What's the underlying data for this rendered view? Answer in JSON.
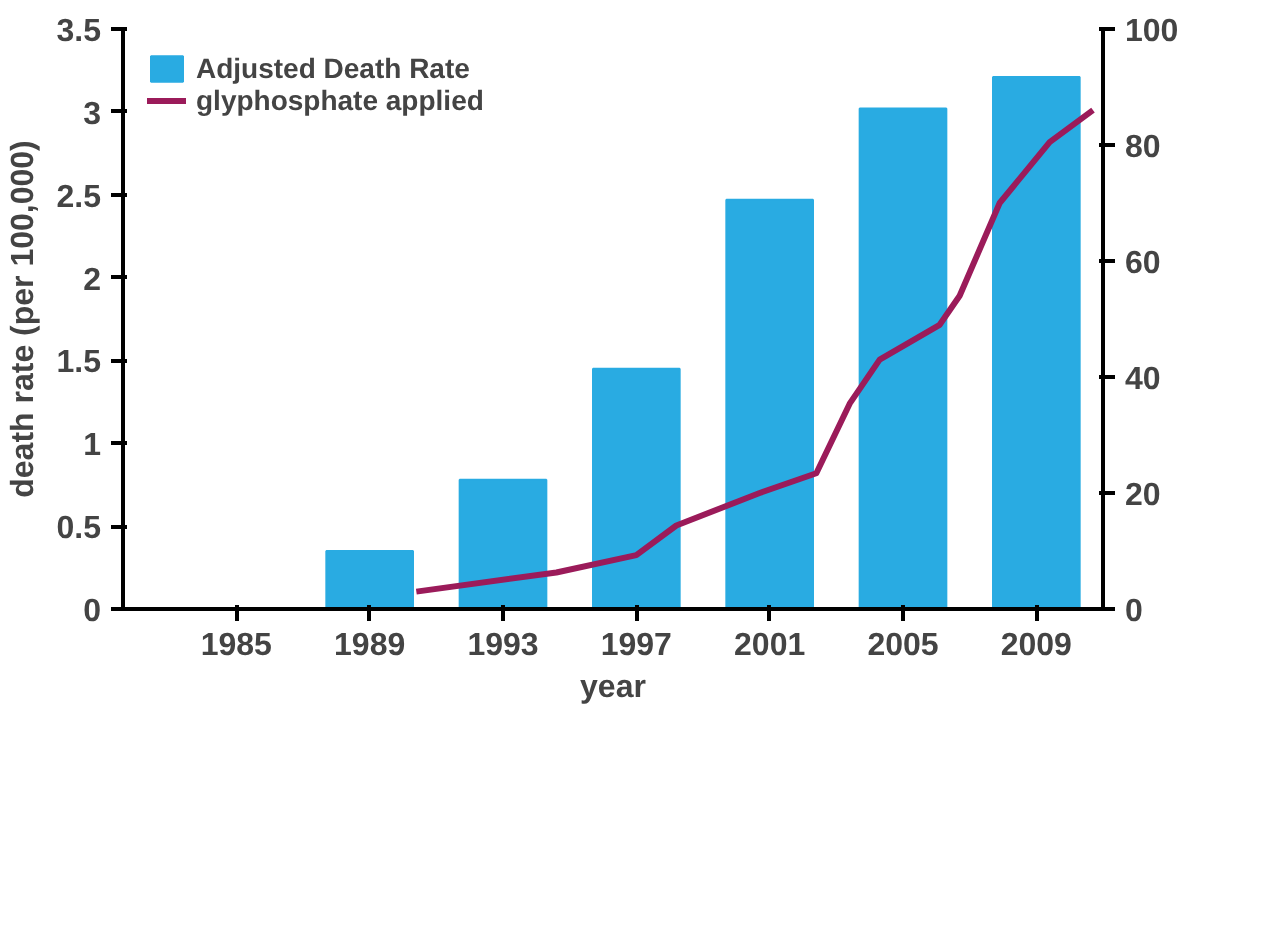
{
  "chart_data": {
    "type": "bar",
    "xlabel": "year",
    "ylabel": "death rate (per 100,000)",
    "x": [
      1989,
      1993,
      1997,
      2001,
      2005,
      2009
    ],
    "xlim": [
      1981.6,
      2011
    ],
    "xticks": [
      1985,
      1989,
      1993,
      1997,
      2001,
      2005,
      2009
    ],
    "ylim": [
      0,
      3.5
    ],
    "yticks": [
      0,
      0.5,
      1,
      1.5,
      2,
      2.5,
      3,
      3.5
    ],
    "y2lim": [
      0,
      100
    ],
    "y2ticks": [
      0,
      20,
      40,
      60,
      80,
      100
    ],
    "grid": false,
    "legend": "top left",
    "series": [
      {
        "name": "Adjusted Death Rate",
        "color": "#29abe2",
        "values": [
          0.35,
          0.78,
          1.45,
          2.47,
          3.02,
          3.21
        ]
      },
      {
        "name": "glyphosphate applied",
        "type": "line",
        "axis": "y2",
        "color": "#9b1b5a",
        "x": [
          1990.4,
          1994.6,
          1997.0,
          1998.2,
          2000.7,
          2002.4,
          2003.4,
          2004.3,
          2006.1,
          2006.7,
          2007.9,
          2009.4,
          2010.7
        ],
        "values": [
          3,
          6.3,
          9.3,
          14.4,
          20,
          23.4,
          35.4,
          43,
          49,
          54,
          70,
          80.5,
          86
        ]
      }
    ]
  }
}
